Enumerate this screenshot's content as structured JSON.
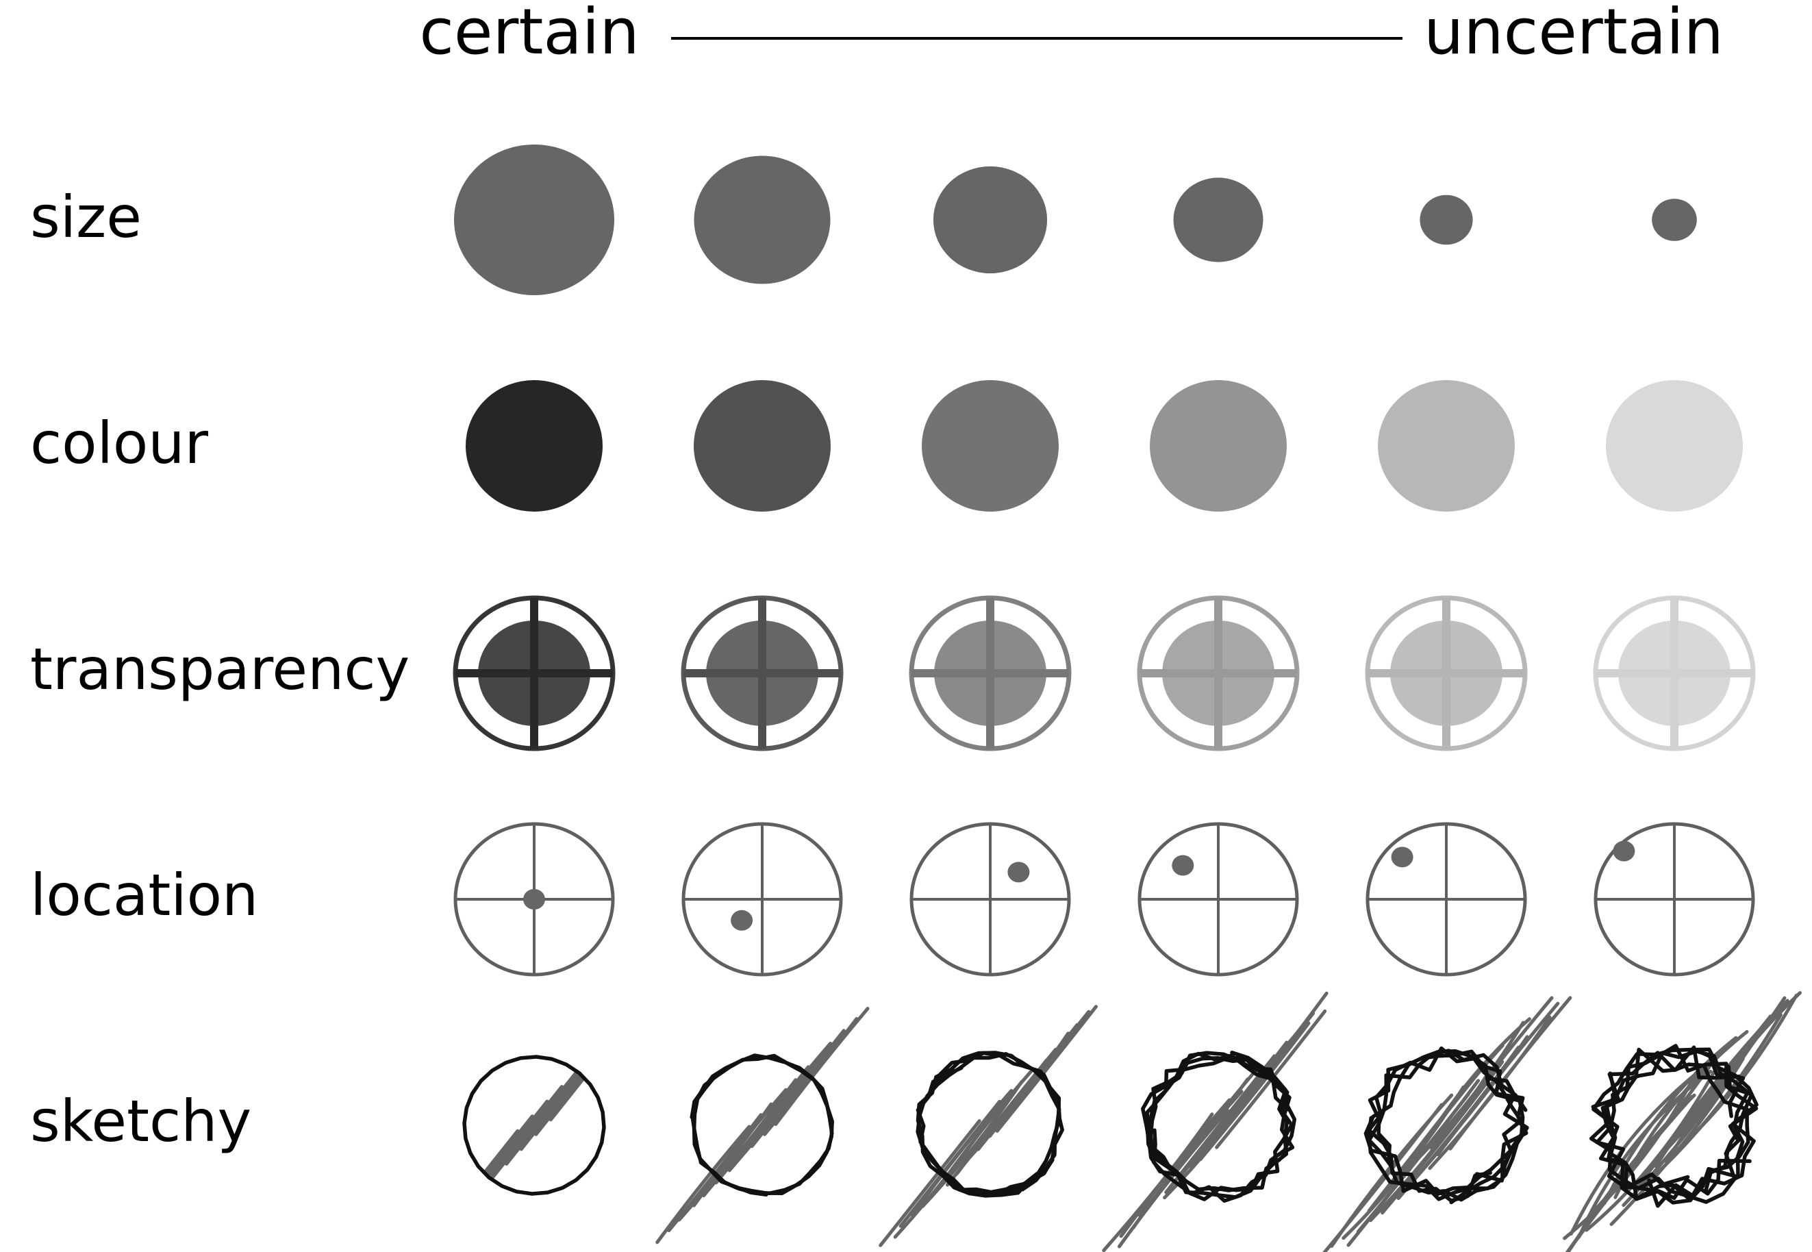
{
  "header": {
    "left_label": "certain",
    "right_label": "uncertain"
  },
  "rows": [
    {
      "key": "size",
      "label": "size"
    },
    {
      "key": "colour",
      "label": "colour"
    },
    {
      "key": "transparency",
      "label": "transparency"
    },
    {
      "key": "location",
      "label": "location"
    },
    {
      "key": "sketchy",
      "label": "sketchy"
    }
  ],
  "levels": 6,
  "size_scale": [
    1.0,
    0.85,
    0.71,
    0.56,
    0.33,
    0.28
  ],
  "colour_scale": [
    "#262626",
    "#525252",
    "#737373",
    "#949494",
    "#b7b7b7",
    "#d9d9d9"
  ],
  "transparency_opacity": [
    0.95,
    0.78,
    0.6,
    0.45,
    0.33,
    0.2
  ],
  "location_offsets": [
    [
      0.0,
      0.0
    ],
    [
      -0.26,
      0.28
    ],
    [
      0.36,
      -0.36
    ],
    [
      -0.45,
      -0.45
    ],
    [
      -0.56,
      -0.56
    ],
    [
      -0.64,
      -0.64
    ]
  ],
  "sketchy_roughness": [
    0.0,
    0.15,
    0.3,
    0.5,
    0.75,
    1.0
  ],
  "colors": {
    "mark": "#666666",
    "outline": "#5f5f5f",
    "sketch": "#111111",
    "hatch": "#666666",
    "text": "#000000"
  }
}
